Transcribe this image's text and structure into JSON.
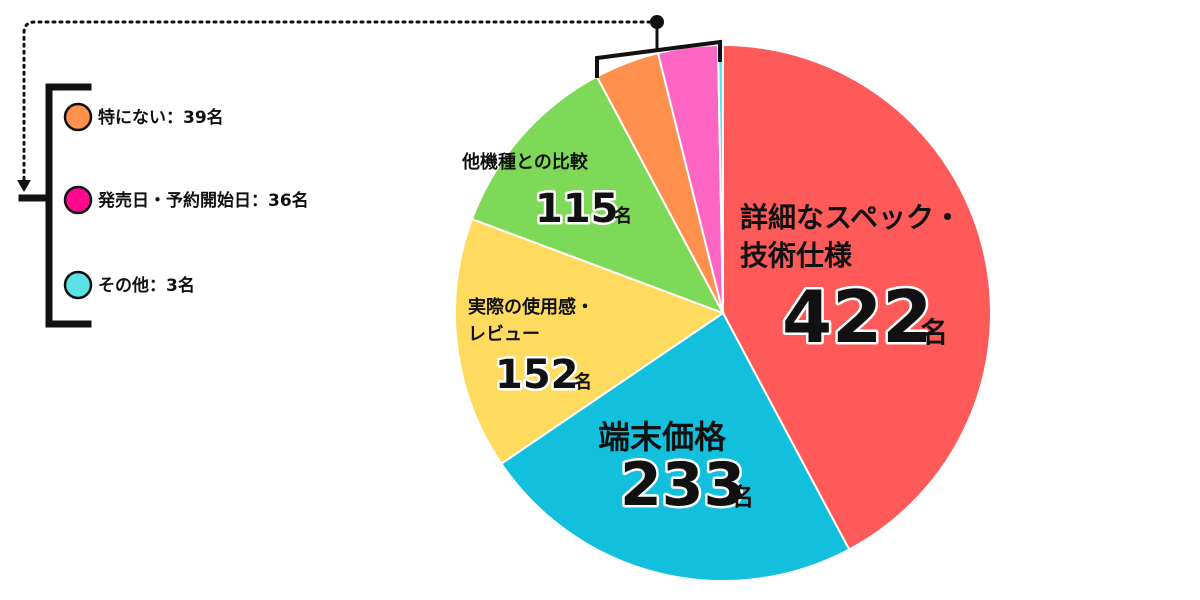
{
  "chart_data": {
    "type": "pie",
    "unit": "名",
    "slices": [
      {
        "name": "詳細なスペック・技術仕様",
        "value": 422,
        "color": "#ff5a5a"
      },
      {
        "name": "端末価格",
        "value": 233,
        "color": "#12bfdc"
      },
      {
        "name": "実際の使用感・レビュー",
        "value": 152,
        "color": "#fedb5e"
      },
      {
        "name": "他機種との比較",
        "value": 115,
        "color": "#7dd957"
      },
      {
        "name": "特にない",
        "value": 39,
        "color": "#ff904d"
      },
      {
        "name": "発売日・予約開始日",
        "value": 36,
        "color": "#ff66c4"
      },
      {
        "name": "その他",
        "value": 3,
        "color": "#5ce1e6"
      }
    ],
    "labels": {
      "spec_line1": "詳細なスペック・",
      "spec_line2": "技術仕様",
      "spec_value": "422",
      "price_line1": "端末価格",
      "price_value": "233",
      "review_line1": "実際の使用感・",
      "review_line2": "レビュー",
      "review_value": "152",
      "compare_line1": "他機種との比較",
      "compare_value": "115",
      "unit": "名"
    },
    "legend": [
      {
        "text": "特にない：39名",
        "color": "#ff904d"
      },
      {
        "text": "発売日・予約開始日：36名",
        "color": "#ff0a8f"
      },
      {
        "text": "その他：3名",
        "color": "#5ce1e6"
      }
    ]
  }
}
